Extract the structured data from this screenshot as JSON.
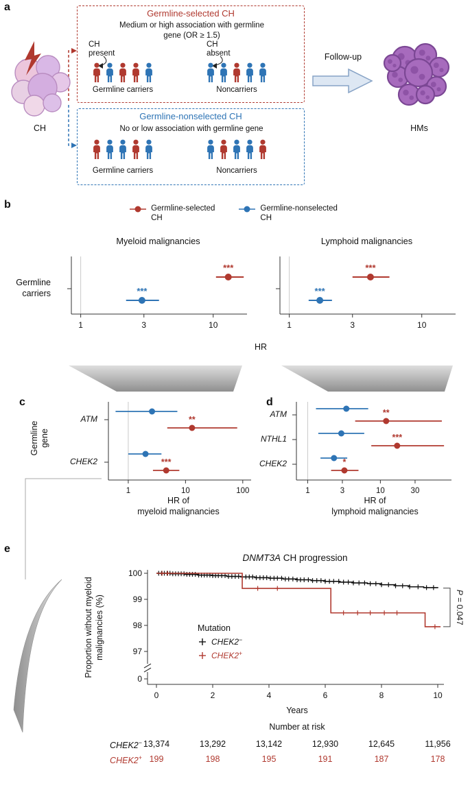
{
  "figure": {
    "panel_labels": {
      "a": "a",
      "b": "b",
      "c": "c",
      "d": "d",
      "e": "e"
    }
  },
  "colors": {
    "red": "#b0392f",
    "blue": "#2e74b5",
    "black": "#111111",
    "axis": "#333333",
    "ref_line": "#c9c9c9",
    "arrow_fill": "#dde7f3",
    "arrow_stroke": "#87a3c6",
    "ch_cell_stroke": "#b98cc0",
    "hm_cell_fill": "#a76bbd",
    "hm_cell_stroke": "#7b4794"
  },
  "panel_a": {
    "ch_label": "CH",
    "followup_label": "Follow-up",
    "hms_label": "HMs",
    "selected": {
      "title": "Germline-selected CH",
      "desc": "Medium or high association with germline gene (OR ≥ 1.5)",
      "ch_present": "CH present",
      "ch_absent": "CH absent",
      "carriers_label": "Germline carriers",
      "noncarriers_label": "Noncarriers",
      "carriers_people": [
        "red",
        "blue",
        "red",
        "red",
        "blue"
      ],
      "noncarriers_people": [
        "blue",
        "blue",
        "red",
        "blue",
        "blue"
      ]
    },
    "nonselected": {
      "title": "Germline-nonselected CH",
      "desc": "No or low association with germline gene",
      "carriers_label": "Germline carriers",
      "noncarriers_label": "Noncarriers",
      "carriers_people": [
        "red",
        "blue",
        "blue",
        "red",
        "blue"
      ],
      "noncarriers_people": [
        "blue",
        "red",
        "blue",
        "blue",
        "red"
      ]
    }
  },
  "panel_b": {
    "legend": [
      {
        "color": "red",
        "line1": "Germline-selected",
        "line2": "CH"
      },
      {
        "color": "blue",
        "line1": "Germline-nonselected",
        "line2": "CH"
      }
    ],
    "row_label": "Germline carriers",
    "xlabel": "HR"
  },
  "panel_c": {
    "ylabel_1": "Germline",
    "ylabel_2": "gene"
  },
  "chart_data": [
    {
      "id": "b_myeloid",
      "type": "forest",
      "title": "Myeloid malignancies",
      "xscale": "log",
      "xticks": [
        1,
        3,
        10
      ],
      "xlim": [
        0.85,
        18
      ],
      "row": "Germline carriers",
      "points": [
        {
          "series": "Germline-selected CH",
          "color": "red",
          "hr": 13,
          "lo": 10.5,
          "hi": 17,
          "sig": "***"
        },
        {
          "series": "Germline-nonselected CH",
          "color": "blue",
          "hr": 2.9,
          "lo": 2.2,
          "hi": 3.9,
          "sig": "***"
        }
      ]
    },
    {
      "id": "b_lymphoid",
      "type": "forest",
      "title": "Lymphoid malignancies",
      "xscale": "log",
      "xticks": [
        1,
        3,
        10
      ],
      "xlim": [
        0.85,
        18
      ],
      "row": "Germline carriers",
      "points": [
        {
          "series": "Germline-selected CH",
          "color": "red",
          "hr": 4.1,
          "lo": 3.0,
          "hi": 5.7,
          "sig": "***"
        },
        {
          "series": "Germline-nonselected CH",
          "color": "blue",
          "hr": 1.7,
          "lo": 1.4,
          "hi": 2.1,
          "sig": "***"
        }
      ]
    },
    {
      "id": "c_genes_myeloid",
      "type": "forest",
      "xscale": "log",
      "xticks": [
        1,
        10,
        100
      ],
      "xlim": [
        0.45,
        140
      ],
      "xlabel1": "HR of",
      "xlabel2": "myeloid malignancies",
      "genes": [
        {
          "gene": "ATM",
          "nonselected": {
            "hr": 2.6,
            "lo": 0.6,
            "hi": 7.2,
            "sig": ""
          },
          "selected": {
            "hr": 13,
            "lo": 4.8,
            "hi": 80,
            "sig": "**"
          }
        },
        {
          "gene": "CHEK2",
          "nonselected": {
            "hr": 2.0,
            "lo": 1.0,
            "hi": 3.8,
            "sig": ""
          },
          "selected": {
            "hr": 4.6,
            "lo": 2.7,
            "hi": 7.8,
            "sig": "***"
          }
        }
      ]
    },
    {
      "id": "d_genes_lymphoid",
      "type": "forest",
      "xscale": "log",
      "xticks": [
        1,
        3,
        10,
        30
      ],
      "xlim": [
        0.7,
        95
      ],
      "xlabel1": "HR of",
      "xlabel2": "lymphoid malignancies",
      "genes": [
        {
          "gene": "ATM",
          "nonselected": {
            "hr": 3.4,
            "lo": 1.3,
            "hi": 6.8,
            "sig": ""
          },
          "selected": {
            "hr": 12,
            "lo": 4.5,
            "hi": 70,
            "sig": "**"
          }
        },
        {
          "gene": "NTHL1",
          "nonselected": {
            "hr": 2.9,
            "lo": 1.4,
            "hi": 6.0,
            "sig": ""
          },
          "selected": {
            "hr": 17,
            "lo": 7.5,
            "hi": 75,
            "sig": "***"
          }
        },
        {
          "gene": "CHEK2",
          "nonselected": {
            "hr": 2.3,
            "lo": 1.5,
            "hi": 3.5,
            "sig": ""
          },
          "selected": {
            "hr": 3.2,
            "lo": 2.1,
            "hi": 5.0,
            "sig": "*"
          }
        }
      ]
    },
    {
      "id": "e_km",
      "type": "km",
      "title": {
        "gene": "DNMT3A",
        "rest": " CH progression"
      },
      "ylabel1": "Proportion without myeloid",
      "ylabel2": "malignancies (%)",
      "xlabel": "Years",
      "yticks": [
        100,
        99,
        98,
        97
      ],
      "ybreak_label": "0",
      "xticks": [
        0,
        2,
        4,
        6,
        8,
        10
      ],
      "legend_title": "Mutation",
      "pvalue_italic": "P",
      "pvalue_rest": " = 0.047",
      "series": [
        {
          "gene": "CHEK2",
          "sup": "−",
          "color": "black",
          "steps": [
            [
              0,
              100
            ],
            [
              0.5,
              99.98
            ],
            [
              1,
              99.96
            ],
            [
              1.5,
              99.93
            ],
            [
              2,
              99.91
            ],
            [
              2.5,
              99.88
            ],
            [
              3,
              99.86
            ],
            [
              3.5,
              99.83
            ],
            [
              4,
              99.81
            ],
            [
              4.5,
              99.78
            ],
            [
              5,
              99.75
            ],
            [
              5.5,
              99.72
            ],
            [
              6,
              99.69
            ],
            [
              6.5,
              99.66
            ],
            [
              7,
              99.63
            ],
            [
              7.5,
              99.6
            ],
            [
              8,
              99.56
            ],
            [
              8.5,
              99.52
            ],
            [
              9,
              99.48
            ],
            [
              9.5,
              99.45
            ],
            [
              10,
              99.43
            ]
          ],
          "censor_x": [
            0.08,
            0.18,
            0.28,
            0.38,
            0.48,
            0.58,
            0.68,
            0.78,
            0.88,
            0.98,
            1.08,
            1.18,
            1.28,
            1.38,
            1.5,
            1.6,
            1.7,
            1.8,
            1.9,
            2.0,
            2.1,
            2.2,
            2.32,
            2.44,
            2.56,
            2.68,
            2.8,
            2.92,
            3.05,
            3.18,
            3.3,
            3.42,
            3.55,
            3.68,
            3.8,
            3.92,
            4.05,
            4.18,
            4.3,
            4.45,
            4.58,
            4.7,
            4.85,
            5.0,
            5.12,
            5.25,
            5.4,
            5.55,
            5.7,
            5.85,
            6.0,
            6.15,
            6.3,
            6.48,
            6.65,
            6.82,
            7.0,
            7.2,
            7.4,
            7.6,
            7.8,
            8.0,
            8.25,
            8.5,
            8.75,
            9.0,
            9.3,
            9.6,
            9.85
          ]
        },
        {
          "gene": "CHEK2",
          "sup": "+",
          "color": "red",
          "steps": [
            [
              0,
              100
            ],
            [
              3.05,
              99.42
            ],
            [
              6.2,
              98.48
            ],
            [
              9.55,
              97.95
            ],
            [
              10.1,
              97.95
            ]
          ],
          "censor_x": [
            0.2,
            0.4,
            3.6,
            4.3,
            6.65,
            7.15,
            7.6,
            8.1,
            8.55,
            9.9
          ]
        }
      ],
      "risk_title": "Number at risk",
      "risk_rows": [
        {
          "gene": "CHEK2",
          "sup": "−",
          "color": "black",
          "values": [
            "13,374",
            "13,292",
            "13,142",
            "12,930",
            "12,645",
            "11,956"
          ]
        },
        {
          "gene": "CHEK2",
          "sup": "+",
          "color": "red",
          "values": [
            "199",
            "198",
            "195",
            "191",
            "187",
            "178"
          ]
        }
      ]
    }
  ]
}
